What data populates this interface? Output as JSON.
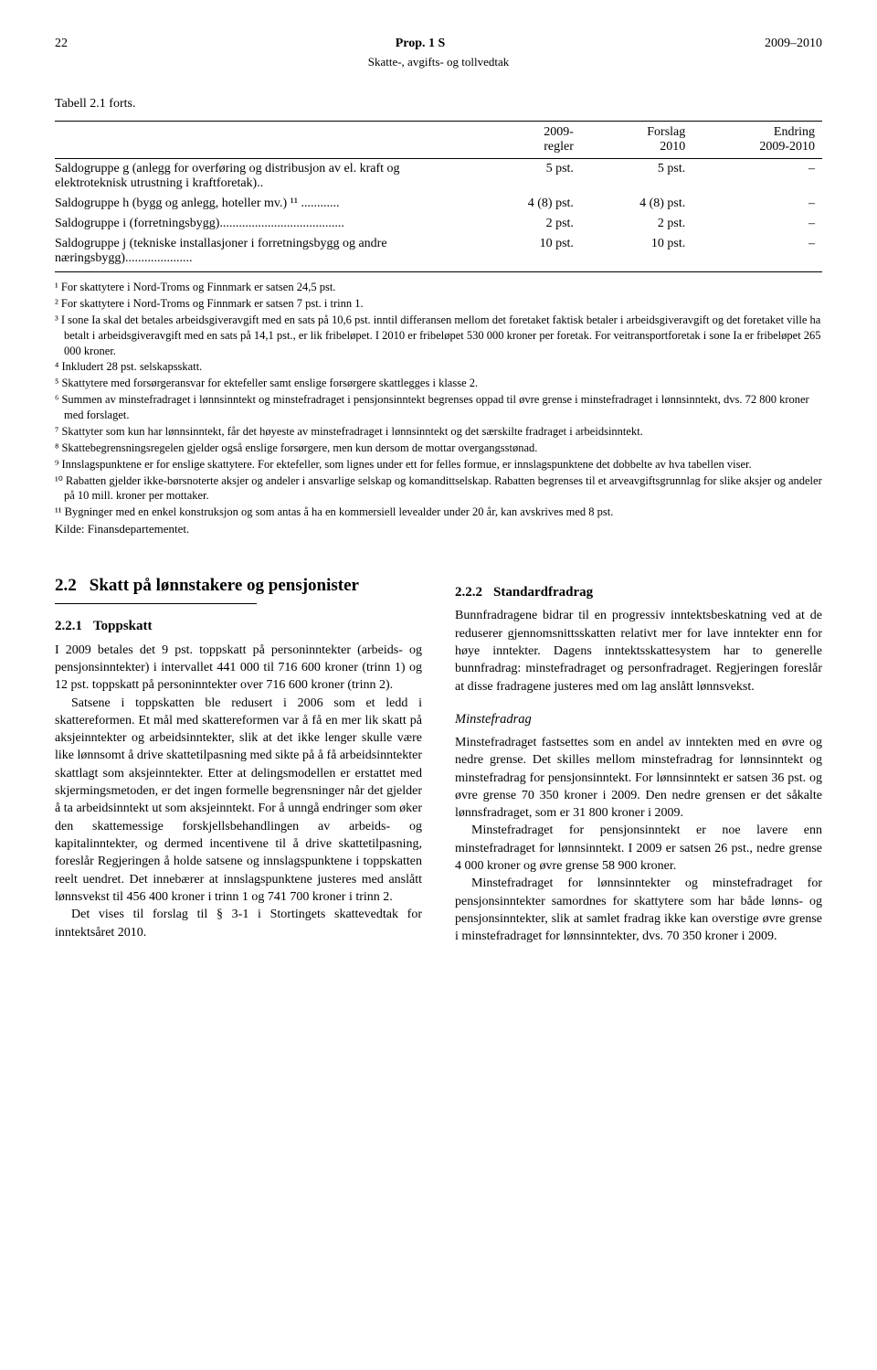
{
  "header": {
    "page_left": "22",
    "center": "Prop. 1 S",
    "page_right": "2009–2010",
    "sub": "Skatte-, avgifts- og tollvedtak"
  },
  "table": {
    "caption": "Tabell 2.1 forts.",
    "columns": [
      "",
      "2009-\nregler",
      "Forslag\n2010",
      "Endring\n2009-2010"
    ],
    "rows": [
      [
        "Saldogruppe g (anlegg for overføring og distribusjon av el. kraft og elektroteknisk utrustning i kraftforetak)..",
        "5 pst.",
        "5 pst.",
        "–"
      ],
      [
        "Saldogruppe h (bygg og anlegg, hoteller mv.) ¹¹ ............",
        "4 (8) pst.",
        "4 (8) pst.",
        "–"
      ],
      [
        "Saldogruppe i (forretningsbygg).......................................",
        "2 pst.",
        "2 pst.",
        "–"
      ],
      [
        "Saldogruppe j (tekniske installasjoner i forretningsbygg og andre næringsbygg).....................",
        "10 pst.",
        "10 pst.",
        "–"
      ]
    ]
  },
  "footnotes": [
    "¹ For skattytere i Nord-Troms og Finnmark er satsen 24,5 pst.",
    "² For skattytere i Nord-Troms og Finnmark er satsen 7 pst. i trinn 1.",
    "³ I sone Ia skal det betales arbeidsgiveravgift med en sats på 10,6 pst. inntil differansen mellom det foretaket faktisk betaler i arbeidsgiveravgift og det foretaket ville ha betalt i arbeidsgiveravgift med en sats på 14,1 pst., er lik fribeløpet. I 2010 er fribeløpet 530 000 kroner per foretak. For veitransportforetak i sone Ia er fribeløpet 265 000 kroner.",
    "⁴ Inkludert 28 pst. selskapsskatt.",
    "⁵ Skattytere med forsørgeransvar for ektefeller samt enslige forsørgere skattlegges i klasse 2.",
    "⁶ Summen av minstefradraget i lønnsinntekt og minstefradraget i pensjonsinntekt begrenses oppad til øvre grense i minstefradraget i lønnsinntekt, dvs. 72 800 kroner med forslaget.",
    "⁷ Skattyter som kun har lønnsinntekt, får det høyeste av minstefradraget i lønnsinntekt og det særskilte fradraget i arbeidsinntekt.",
    "⁸ Skattebegrensningsregelen gjelder også enslige forsørgere, men kun dersom de mottar overgangsstønad.",
    "⁹ Innslagspunktene er for enslige skattytere. For ektefeller, som lignes under ett for felles formue, er innslagspunktene det dobbelte av hva tabellen viser.",
    "¹⁰ Rabatten gjelder ikke-børsnoterte aksjer og andeler i ansvarlige selskap og komandittselskap. Rabatten begrenses til et arveavgiftsgrunnlag for slike aksjer og andeler på 10 mill. kroner per mottaker.",
    "¹¹ Bygninger med en enkel konstruksjon og som antas å ha en kommersiell levealder under 20 år, kan avskrives med 8 pst."
  ],
  "source": "Kilde: Finansdepartementet.",
  "left_col": {
    "h2_num": "2.2",
    "h2_title": "Skatt på lønnstakere og pensjonister",
    "h3_num": "2.2.1",
    "h3_title": "Toppskatt",
    "p1": "I 2009 betales det 9 pst. toppskatt på personinntekter (arbeids- og pensjonsinntekter) i intervallet 441 000 til 716 600 kroner (trinn 1) og 12 pst. toppskatt på personinntekter over 716 600 kroner (trinn 2).",
    "p2": "Satsene i toppskatten ble redusert i 2006 som et ledd i skattereformen. Et mål med skattereformen var å få en mer lik skatt på aksjeinntekter og arbeidsinntekter, slik at det ikke lenger skulle være like lønnsomt å drive skattetilpasning med sikte på å få arbeidsinntekter skattlagt som aksjeinntekter. Etter at delingsmodellen er erstattet med skjermingsmetoden, er det ingen formelle begrensninger når det gjelder å ta arbeidsinntekt ut som aksjeinntekt. For å unngå endringer som øker den skattemessige forskjellsbehandlingen av arbeids- og kapitalinntekter, og dermed incentivene til å drive skattetilpasning, foreslår Regjeringen å holde satsene og innslagspunktene i toppskatten reelt uendret. Det innebærer at innslagspunktene justeres med anslått lønnsvekst til 456 400 kroner i trinn 1 og 741 700 kroner i trinn 2.",
    "p3": "Det vises til forslag til § 3-1 i Stortingets skattevedtak for inntektsåret 2010."
  },
  "right_col": {
    "h3_num": "2.2.2",
    "h3_title": "Standardfradrag",
    "p1": "Bunnfradragene bidrar til en progressiv inntektsbeskatning ved at de reduserer gjennomsnittsskatten relativt mer for lave inntekter enn for høye inntekter. Dagens inntektsskattesystem har to generelle bunnfradrag: minstefradraget og personfradraget. Regjeringen foreslår at disse fradragene justeres med om lag anslått lønnsvekst.",
    "h4": "Minstefradrag",
    "p2": "Minstefradraget fastsettes som en andel av inntekten med en øvre og nedre grense. Det skilles mellom minstefradrag for lønnsinntekt og minstefradrag for pensjonsinntekt. For lønnsinntekt er satsen 36 pst. og øvre grense 70 350 kroner i 2009. Den nedre grensen er det såkalte lønnsfradraget, som er 31 800 kroner i 2009.",
    "p3": "Minstefradraget for pensjonsinntekt er noe lavere enn minstefradraget for lønnsinntekt. I 2009 er satsen 26 pst., nedre grense 4 000 kroner og øvre grense 58 900 kroner.",
    "p4": "Minstefradraget for lønnsinntekter og minstefradraget for pensjonsinntekter samordnes for skattytere som har både lønns- og pensjonsinntekter, slik at samlet fradrag ikke kan overstige øvre grense i minstefradraget for lønnsinntekter, dvs. 70 350 kroner i 2009."
  }
}
